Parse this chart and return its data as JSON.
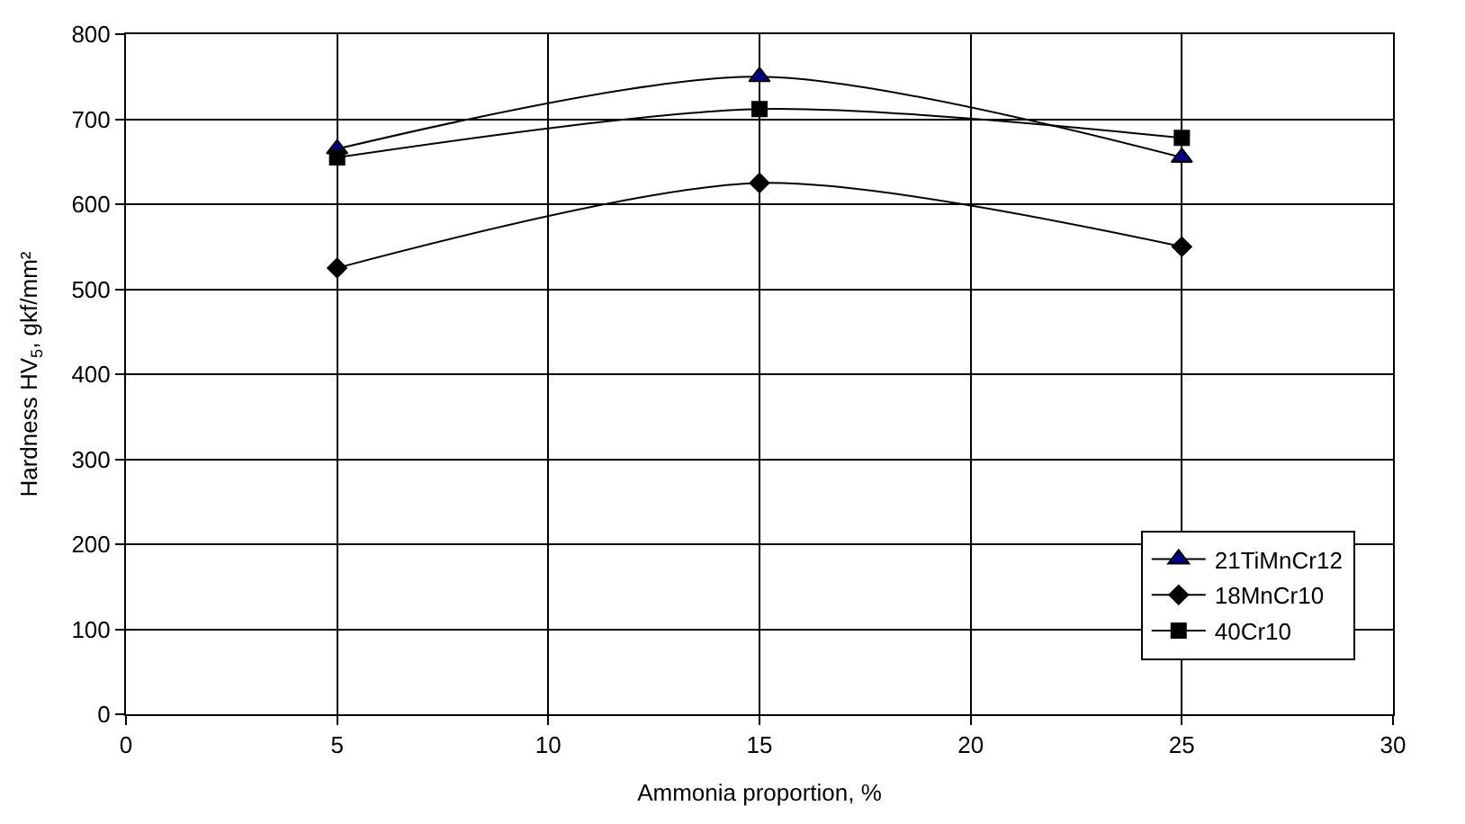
{
  "chart_data": {
    "type": "line",
    "xlabel": "Ammonia proportion, %",
    "ylabel": "Hardness HV$_{5}$, gkf/mm²",
    "x": [
      5,
      15,
      25
    ],
    "series": [
      {
        "name": "21TiMnCr12",
        "color": "#000080",
        "marker": "triangle",
        "values": [
          665,
          750,
          655
        ]
      },
      {
        "name": "18MnCr10",
        "color": "#000000",
        "marker": "diamond",
        "values": [
          525,
          625,
          550
        ]
      },
      {
        "name": "40Cr10",
        "color": "#000000",
        "marker": "square",
        "values": [
          655,
          712,
          678
        ]
      }
    ],
    "xlim": [
      0,
      30
    ],
    "xticks": [
      0,
      5,
      10,
      15,
      20,
      25,
      30
    ],
    "ylim": [
      0,
      800
    ],
    "yticks": [
      0,
      100,
      200,
      300,
      400,
      500,
      600,
      700,
      800
    ],
    "grid": true,
    "legend": "bottom right",
    "line_style": "solid"
  }
}
